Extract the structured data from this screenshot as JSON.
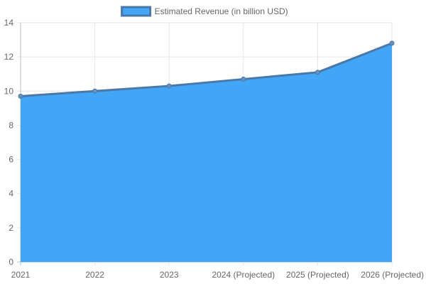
{
  "chart_data": {
    "type": "area",
    "categories": [
      "2021",
      "2022",
      "2023",
      "2024 (Projected)",
      "2025 (Projected)",
      "2026 (Projected)"
    ],
    "series": [
      {
        "name": "Estimated Revenue (in billion USD)",
        "values": [
          9.7,
          10.0,
          10.3,
          10.7,
          11.1,
          12.8
        ],
        "fill_color": "#42a5f5",
        "line_color": "#4a78a8"
      }
    ],
    "ylim": [
      0,
      14
    ],
    "yticks": [
      0,
      2,
      4,
      6,
      8,
      10,
      12,
      14
    ],
    "grid": true,
    "legend": "top-center"
  }
}
